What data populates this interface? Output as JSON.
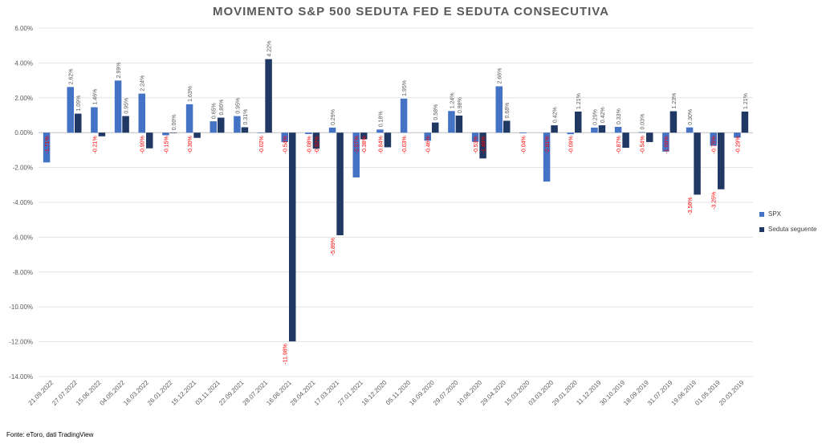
{
  "chart_data": {
    "type": "bar",
    "title": "MOVIMENTO S&P 500 SEDUTA FED E SEDUTA CONSECUTIVA",
    "xlabel": "",
    "ylabel": "",
    "ylim": [
      -0.14,
      0.06
    ],
    "yticks": [
      "6.00%",
      "4.00%",
      "2.00%",
      "0.00%",
      "-2.00%",
      "-4.00%",
      "-6.00%",
      "-8.00%",
      "-10.00%",
      "-12.00%",
      "-14.00%"
    ],
    "ytick_values": [
      0.06,
      0.04,
      0.02,
      0.0,
      -0.02,
      -0.04,
      -0.06,
      -0.08,
      -0.1,
      -0.12,
      -0.14
    ],
    "legend_position": "right",
    "grid": true,
    "categories": [
      "21.09.2022",
      "27.07.2022",
      "15.06.2022",
      "04.05.2022",
      "16.03.2022",
      "26.01.2022",
      "15.12.2021",
      "03.11.2021",
      "22.09.2021",
      "28.07.2021",
      "16.06.2021",
      "28.04.2021",
      "17.03.2021",
      "27.01.2021",
      "16.12.2020",
      "05.11.2020",
      "16.09.2020",
      "29.07.2020",
      "10.06.2020",
      "29.04.2020",
      "15.03.2020",
      "03.03.2020",
      "29.01.2020",
      "11.12.2019",
      "30.10.2019",
      "18.09.2019",
      "31.07.2019",
      "19.06.2019",
      "01.05.2019",
      "20.03.2019"
    ],
    "series": [
      {
        "name": "SPX",
        "color": "#4472c4",
        "values": [
          -0.0171,
          0.0262,
          0.0146,
          0.0299,
          0.0224,
          -0.0015,
          0.0163,
          0.0065,
          0.0095,
          -0.0002,
          -0.0054,
          -0.0008,
          0.0029,
          -0.0257,
          0.0018,
          0.0195,
          -0.0046,
          0.0124,
          -0.0053,
          0.0266,
          -0.0004,
          -0.0281,
          -0.0009,
          0.0029,
          0.0033,
          0.0003,
          -0.0109,
          0.003,
          -0.0075,
          -0.0029
        ],
        "labels": [
          null,
          "2.62%",
          "1.46%",
          "2.99%",
          "2.24%",
          null,
          "1.63%",
          "0.65%",
          "0.95%",
          null,
          null,
          null,
          "0.29%",
          null,
          "0.18%",
          "1.95%",
          null,
          "1.24%",
          null,
          "2.66%",
          null,
          null,
          null,
          "0.29%",
          "0.33%",
          "0.03%",
          null,
          "0.30%",
          null,
          null
        ]
      },
      {
        "name": "Seduta seguente",
        "color": "#203864",
        "values": [
          null,
          0.0109,
          -0.0021,
          0.0095,
          -0.009,
          0.0,
          -0.003,
          0.0086,
          0.0031,
          0.0422,
          -0.1198,
          -0.0092,
          -0.0589,
          -0.0038,
          -0.0084,
          null,
          0.0058,
          0.0098,
          -0.0148,
          0.0068,
          null,
          0.0042,
          0.0121,
          0.0042,
          -0.0087,
          -0.0054,
          0.0123,
          -0.0356,
          -0.0325,
          0.0121
        ],
        "labels": [
          null,
          "1.09%",
          null,
          "0.95%",
          null,
          "0.00%",
          null,
          "0.86%",
          "0.31%",
          "4.22%",
          null,
          null,
          null,
          null,
          null,
          null,
          "0.58%",
          "0.98%",
          null,
          "0.68%",
          null,
          "0.42%",
          "1.21%",
          "0.42%",
          null,
          null,
          "1.23%",
          null,
          null,
          "1.21%"
        ]
      }
    ],
    "negative_labels": [
      {
        "index": 0,
        "text": "-1.71%"
      },
      {
        "index": 2,
        "text": "-0.21%"
      },
      {
        "index": 4,
        "text": "-0.90%"
      },
      {
        "index": 5,
        "text": "-0.15%"
      },
      {
        "index": 6,
        "text": "-0.30%"
      },
      {
        "index": 9,
        "text": "-0.02%"
      },
      {
        "index": 10,
        "text": "-0.54%"
      },
      {
        "index": 10,
        "text": "-11.98%",
        "low": -0.1198
      },
      {
        "index": 11,
        "text": "-0.08%"
      },
      {
        "index": 11,
        "text": "-0.92%",
        "offset": 1
      },
      {
        "index": 12,
        "text": "-5.89%",
        "low": -0.0589
      },
      {
        "index": 13,
        "text": "-2.57%"
      },
      {
        "index": 13,
        "text": "-0.38%",
        "offset": 1
      },
      {
        "index": 14,
        "text": "-0.84%"
      },
      {
        "index": 15,
        "text": "-0.03%"
      },
      {
        "index": 16,
        "text": "-0.46%"
      },
      {
        "index": 18,
        "text": "-0.53%"
      },
      {
        "index": 18,
        "text": "-1.48%",
        "offset": 1
      },
      {
        "index": 20,
        "text": "-0.04%"
      },
      {
        "index": 21,
        "text": "-2.81%"
      },
      {
        "index": 22,
        "text": "-0.09%"
      },
      {
        "index": 24,
        "text": "-0.87%"
      },
      {
        "index": 25,
        "text": "-0.54%"
      },
      {
        "index": 26,
        "text": "-1.09%"
      },
      {
        "index": 27,
        "text": "-3.56%",
        "low": -0.0356
      },
      {
        "index": 28,
        "text": "-0.75%"
      },
      {
        "index": 28,
        "text": "-3.25%",
        "low": -0.0325
      },
      {
        "index": 29,
        "text": "-0.29%"
      }
    ],
    "negative_label_color": "#ff0000",
    "positive_label_color": "#595959"
  },
  "source_note": "Fonte: eToro, dati TradingView"
}
